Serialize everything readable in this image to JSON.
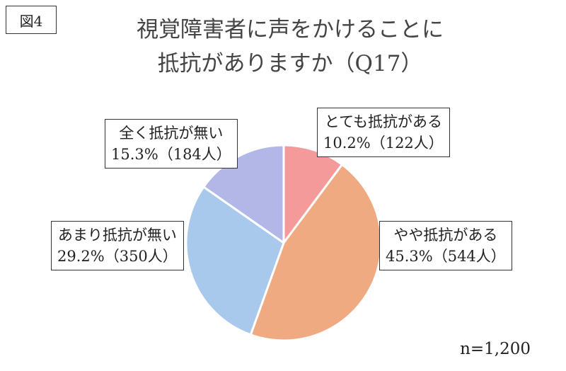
{
  "figure_label": "図4",
  "chart_data": {
    "type": "pie",
    "title_line1": "視覚障害者に声をかけることに",
    "title_line2": "抵抗がありますか（Q17）",
    "slices": [
      {
        "label": "とても抵抗がある",
        "percent": 10.2,
        "count": 122,
        "value_text": "10.2%（122人）",
        "color": "#f59a9a"
      },
      {
        "label": "やや抵抗がある",
        "percent": 45.3,
        "count": 544,
        "value_text": "45.3%（544人）",
        "color": "#f0aa82"
      },
      {
        "label": "あまり抵抗が無い",
        "percent": 29.2,
        "count": 350,
        "value_text": "29.2%（350人）",
        "color": "#a8c8ec"
      },
      {
        "label": "全く抵抗が無い",
        "percent": 15.3,
        "count": 184,
        "value_text": "15.3%（184人）",
        "color": "#b3b7e8"
      }
    ],
    "start_angle": "12 o'clock",
    "direction": "clockwise",
    "n_label": "n=1,200"
  }
}
